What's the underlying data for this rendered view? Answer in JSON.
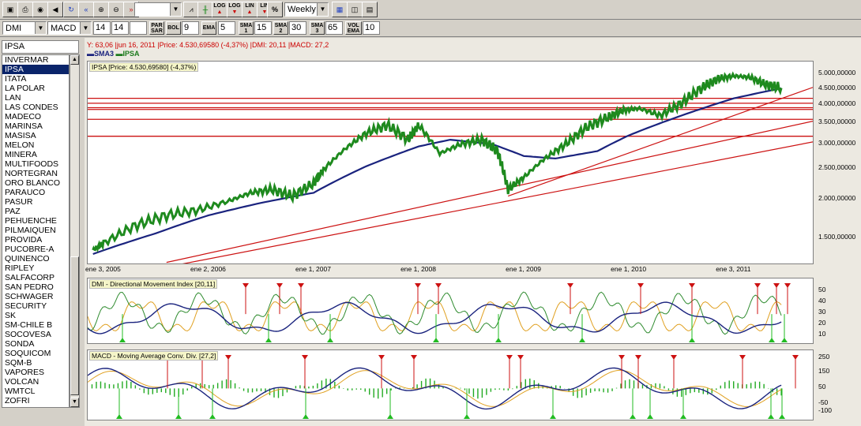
{
  "toolbar": {
    "buttons": [
      "save-icon",
      "print-icon",
      "camera-icon",
      "speaker-icon",
      "refresh-icon",
      "rewind-icon",
      "zoom-in-icon",
      "zoom-out-icon",
      "fast-forward-icon"
    ],
    "blank_select": "",
    "log_labels": [
      "LOG",
      "LOG",
      "LIN",
      "LIN",
      "%"
    ],
    "period": "Weekly"
  },
  "params": {
    "ind1": "DMI",
    "ind2": "MACD",
    "v1": "14",
    "v2": "14",
    "v3": "",
    "parsar_label": "PAR SAR",
    "bol_label": "BOL",
    "bol_val": "9",
    "ema_label": "EMA",
    "ema_val": "5",
    "sma1_label": "SMA 1",
    "sma1_val": "15",
    "sma2_label": "SMA 2",
    "sma2_val": "30",
    "sma3_label": "SMA 3",
    "sma3_val": "65",
    "volema_label": "VOL EMA",
    "volema_val": "10"
  },
  "sidebar": {
    "search": "IPSA",
    "selected": "IPSA",
    "items": [
      "INVERMAR",
      "IPSA",
      "ITATA",
      "LA POLAR",
      "LAN",
      "LAS CONDES",
      "MADECO",
      "MARINSA",
      "MASISA",
      "MELON",
      "MINERA",
      "MULTIFOODS",
      "NORTEGRAN",
      "ORO BLANCO",
      "PARAUCO",
      "PASUR",
      "PAZ",
      "PEHUENCHE",
      "PILMAIQUEN",
      "PROVIDA",
      "PUCOBRE-A",
      "QUINENCO",
      "RIPLEY",
      "SALFACORP",
      "SAN PEDRO",
      "SCHWAGER",
      "SECURITY",
      "SK",
      "SM-CHILE B",
      "SOCOVESA",
      "SONDA",
      "SOQUICOM",
      "SQM-B",
      "VAPORES",
      "VOLCAN",
      "WMTCL",
      "ZOFRI"
    ]
  },
  "chart": {
    "info_line": "Y: 63,06 |jun 16, 2011 |Price: 4.530,69580 (-4,37%) |DMI: 20,11 |MACD: 27,2",
    "legend": [
      {
        "name": "SMA3",
        "color": "#1a237e"
      },
      {
        "name": "IPSA",
        "color": "#1b7a1b"
      }
    ],
    "price_title": "IPSA [Price: 4.530,69580] (-4,37%)",
    "dmi_title": "DMI - Directional Movement Index [20,11]",
    "macd_title": "MACD - Moving Average Conv. Div. [27,2]",
    "colors": {
      "price": "#1e8a1e",
      "sma": "#1a237e",
      "trend": "#cc1111",
      "adx": "#1a237e",
      "pdi": "#2e8b2e",
      "mdi": "#e0a020",
      "macd": "#1a237e",
      "signal": "#e0a020",
      "hist": "#22aa22",
      "up_marker": "#22bb22",
      "down_marker": "#cc1111"
    }
  },
  "chart_data": {
    "type": "line",
    "title": "IPSA [Price: 4.530,69580] (-4,37%)",
    "x_ticks": [
      "ene 3, 2005",
      "ene 2, 2006",
      "ene 1, 2007",
      "ene 1, 2008",
      "ene 1, 2009",
      "ene 1, 2010",
      "ene 3, 2011"
    ],
    "y_ticks": [
      "5.000,00000",
      "4.500,00000",
      "4.000,00000",
      "3.500,00000",
      "3.000,00000",
      "2.500,00000",
      "2.000,00000",
      "1.500,00000"
    ],
    "ylim": [
      1250,
      5500
    ],
    "log_scale": true,
    "series": [
      {
        "name": "IPSA",
        "x": [
          2004.9,
          2005.0,
          2005.3,
          2005.6,
          2005.9,
          2006.2,
          2006.4,
          2006.6,
          2006.8,
          2007.0,
          2007.1,
          2007.3,
          2007.5,
          2007.7,
          2007.9,
          2008.0,
          2008.2,
          2008.4,
          2008.6,
          2008.75,
          2008.85,
          2009.0,
          2009.2,
          2009.4,
          2009.6,
          2009.8,
          2009.95,
          2010.1,
          2010.3,
          2010.5,
          2010.7,
          2010.85,
          2011.0,
          2011.15,
          2011.3,
          2011.45
        ],
        "values": [
          1380,
          1450,
          1650,
          1780,
          1850,
          1980,
          2100,
          2150,
          2050,
          2250,
          2500,
          2900,
          3250,
          3450,
          3100,
          3450,
          2800,
          3000,
          3100,
          2850,
          2150,
          2350,
          2700,
          3000,
          3400,
          3650,
          3850,
          3900,
          3700,
          4050,
          4550,
          4850,
          4950,
          4900,
          4650,
          4530
        ]
      },
      {
        "name": "SMA3",
        "x": [
          2004.9,
          2005.5,
          2006.0,
          2006.5,
          2007.0,
          2007.5,
          2008.0,
          2008.3,
          2008.7,
          2009.0,
          2009.3,
          2009.7,
          2010.0,
          2010.5,
          2011.0,
          2011.45
        ],
        "values": [
          1340,
          1560,
          1780,
          1950,
          2100,
          2550,
          2950,
          3100,
          3000,
          2750,
          2700,
          2850,
          3200,
          3700,
          4200,
          4520
        ]
      }
    ],
    "dmi_y_ticks": [
      "50",
      "40",
      "30",
      "20",
      "10"
    ],
    "macd_y_ticks": [
      "250",
      "150",
      "50",
      "-50",
      "-100"
    ]
  }
}
